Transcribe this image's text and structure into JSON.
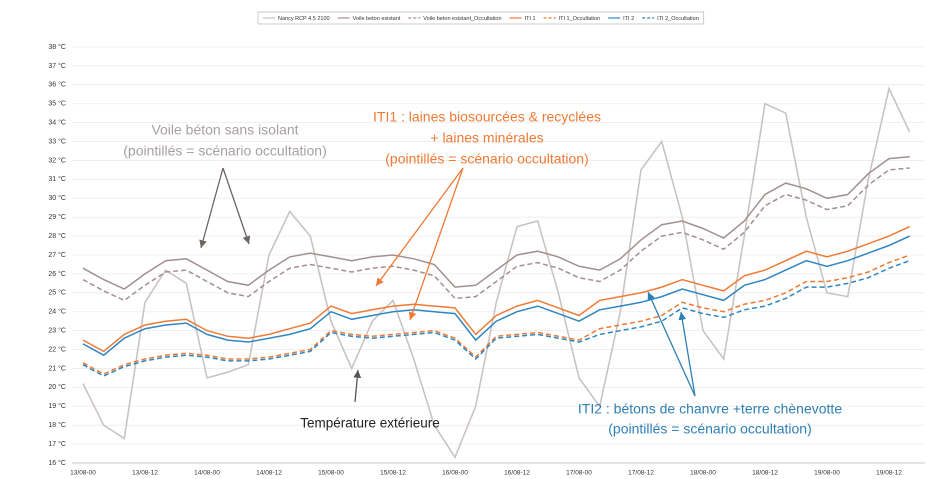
{
  "chart_data": {
    "type": "line",
    "categories": [
      "13/08-00",
      null,
      null,
      "13/08-12",
      null,
      null,
      "14/08-00",
      null,
      null,
      "14/08-12",
      null,
      null,
      "15/08-00",
      null,
      null,
      "15/08-12",
      null,
      null,
      "16/08-00",
      null,
      null,
      "16/08-12",
      null,
      null,
      "17/08-00",
      null,
      null,
      "17/08-12",
      null,
      null,
      "18/08-00",
      null,
      null,
      "18/08-12",
      null,
      null,
      "19/08-00",
      null,
      null,
      "19/08-12",
      null
    ],
    "series": [
      {
        "name": "Nancy RCP 4.5 2100",
        "color": "#cbc3c3",
        "dashed": false,
        "values": [
          20.2,
          18.0,
          17.3,
          24.5,
          26.2,
          25.5,
          20.5,
          20.8,
          21.2,
          27.0,
          29.3,
          28.0,
          23.5,
          21.0,
          23.5,
          24.6,
          21.5,
          18.0,
          16.3,
          19.0,
          24.5,
          28.5,
          28.8,
          25.0,
          20.5,
          19.0,
          24.0,
          31.5,
          33.0,
          29.0,
          23.0,
          21.5,
          28.0,
          35.0,
          34.5,
          29.0,
          25.0,
          24.8,
          31.0,
          35.8,
          33.5
        ]
      },
      {
        "name": "Voile beton existant",
        "color": "#a38f8f",
        "dashed": false,
        "values": [
          26.3,
          25.7,
          25.2,
          26.0,
          26.7,
          26.8,
          26.2,
          25.6,
          25.4,
          26.2,
          26.9,
          27.1,
          26.9,
          26.7,
          26.9,
          27.0,
          26.8,
          26.5,
          25.3,
          25.4,
          26.2,
          27.0,
          27.2,
          26.9,
          26.4,
          26.2,
          26.8,
          27.8,
          28.6,
          28.8,
          28.4,
          27.9,
          28.8,
          30.2,
          30.8,
          30.5,
          30.0,
          30.2,
          31.3,
          32.1,
          32.2
        ]
      },
      {
        "name": "Voile beton existant_Occultation",
        "color": "#a38f8f",
        "dashed": true,
        "values": [
          25.7,
          25.1,
          24.6,
          25.4,
          26.1,
          26.2,
          25.6,
          25.0,
          24.8,
          25.6,
          26.3,
          26.5,
          26.3,
          26.1,
          26.3,
          26.4,
          26.2,
          25.9,
          24.7,
          24.8,
          25.6,
          26.4,
          26.6,
          26.3,
          25.8,
          25.6,
          26.2,
          27.2,
          28.0,
          28.2,
          27.8,
          27.3,
          28.2,
          29.6,
          30.2,
          29.9,
          29.4,
          29.6,
          30.7,
          31.5,
          31.6
        ]
      },
      {
        "name": "ITI 1",
        "color": "#ee7a35",
        "dashed": false,
        "values": [
          22.5,
          21.9,
          22.8,
          23.3,
          23.5,
          23.6,
          23.0,
          22.7,
          22.6,
          22.8,
          23.1,
          23.4,
          24.3,
          23.9,
          24.1,
          24.3,
          24.4,
          24.3,
          24.2,
          22.8,
          23.8,
          24.3,
          24.6,
          24.2,
          23.8,
          24.6,
          24.8,
          25.0,
          25.3,
          25.7,
          25.4,
          25.1,
          25.9,
          26.2,
          26.7,
          27.2,
          26.9,
          27.2,
          27.6,
          28.0,
          28.5
        ]
      },
      {
        "name": "ITI 1_Occultation",
        "color": "#ee7a35",
        "dashed": true,
        "values": [
          21.3,
          20.7,
          21.2,
          21.5,
          21.7,
          21.8,
          21.7,
          21.5,
          21.5,
          21.6,
          21.8,
          22.0,
          23.0,
          22.8,
          22.7,
          22.8,
          22.9,
          23.0,
          22.6,
          21.6,
          22.7,
          22.8,
          22.9,
          22.7,
          22.5,
          23.1,
          23.3,
          23.5,
          23.8,
          24.5,
          24.2,
          24.0,
          24.4,
          24.6,
          25.0,
          25.6,
          25.6,
          25.8,
          26.1,
          26.6,
          27.0
        ]
      },
      {
        "name": "ITI 2",
        "color": "#2f86c2",
        "dashed": false,
        "values": [
          22.3,
          21.7,
          22.6,
          23.1,
          23.3,
          23.4,
          22.8,
          22.5,
          22.4,
          22.6,
          22.8,
          23.1,
          24.0,
          23.6,
          23.8,
          24.0,
          24.1,
          24.0,
          23.9,
          22.5,
          23.5,
          24.0,
          24.3,
          23.9,
          23.5,
          24.1,
          24.3,
          24.5,
          24.8,
          25.2,
          24.9,
          24.6,
          25.4,
          25.7,
          26.2,
          26.7,
          26.4,
          26.7,
          27.1,
          27.5,
          28.0
        ]
      },
      {
        "name": "ITI 2_Occultation",
        "color": "#2f86c2",
        "dashed": true,
        "values": [
          21.2,
          20.6,
          21.1,
          21.4,
          21.6,
          21.7,
          21.6,
          21.4,
          21.4,
          21.5,
          21.7,
          21.9,
          22.9,
          22.7,
          22.6,
          22.7,
          22.8,
          22.9,
          22.5,
          21.5,
          22.6,
          22.7,
          22.8,
          22.6,
          22.4,
          22.8,
          23.0,
          23.2,
          23.5,
          24.2,
          23.9,
          23.7,
          24.1,
          24.3,
          24.7,
          25.3,
          25.3,
          25.5,
          25.8,
          26.3,
          26.7
        ]
      }
    ],
    "ylim": [
      16,
      38
    ],
    "yticks": [
      {
        "value": 16,
        "label": "16 °C"
      },
      {
        "value": 17,
        "label": "17 °C"
      },
      {
        "value": 18,
        "label": "18 °C"
      },
      {
        "value": 19,
        "label": "19 °C"
      },
      {
        "value": 20,
        "label": "20 °C"
      },
      {
        "value": 21,
        "label": "21 °C"
      },
      {
        "value": 22,
        "label": "22 °C"
      },
      {
        "value": 23,
        "label": "23 °C"
      },
      {
        "value": 24,
        "label": "24 °C"
      },
      {
        "value": 25,
        "label": "25 °C"
      },
      {
        "value": 26,
        "label": "26 °C"
      },
      {
        "value": 27,
        "label": "27 °C"
      },
      {
        "value": 28,
        "label": "28 °C"
      },
      {
        "value": 29,
        "label": "29 °C"
      },
      {
        "value": 30,
        "label": "30 °C"
      },
      {
        "value": 31,
        "label": "31 °C"
      },
      {
        "value": 32,
        "label": "32 °C"
      },
      {
        "value": 33,
        "label": "33 °C"
      },
      {
        "value": 34,
        "label": "34 °C"
      },
      {
        "value": 35,
        "label": "35 °C"
      },
      {
        "value": 36,
        "label": "36 °C"
      },
      {
        "value": 37,
        "label": "37 °C"
      },
      {
        "value": 38,
        "label": "38 °C"
      }
    ],
    "grid": true,
    "legend": "top",
    "annotations": [
      {
        "color": "#a8a0a0",
        "lines": [
          "Voile béton sans isolant",
          "(pointillés = scénario occultation)"
        ]
      },
      {
        "color": "#ee7a35",
        "lines": [
          "ITI1 : laines biosourcées & recyclées",
          "+ laines minérales",
          "(pointillés = scénario occultation)"
        ]
      },
      {
        "color": "#222222",
        "lines": [
          "Température extérieure"
        ]
      },
      {
        "color": "#2f7fb5",
        "lines": [
          "ITI2 : bétons de chanvre +terre chènevotte",
          "(pointillés = scénario occultation)"
        ]
      }
    ]
  }
}
